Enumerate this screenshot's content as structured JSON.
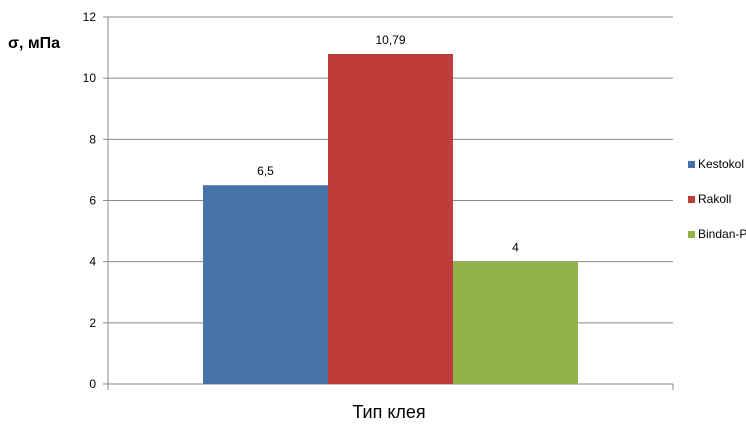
{
  "chart_data": {
    "type": "bar",
    "ylabel": "σ, мПа",
    "xlabel": "Тип клея",
    "ylim": [
      0,
      12
    ],
    "yticks": [
      0,
      2,
      4,
      6,
      8,
      10,
      12
    ],
    "grid": true,
    "legend_position": "right",
    "series": [
      {
        "name": "Kestokol",
        "value": 6.5,
        "label": "6,5",
        "color": "#4572a7"
      },
      {
        "name": "Rakoll",
        "value": 10.79,
        "label": "10,79",
        "color": "#be3d3a"
      },
      {
        "name": "Bindan-P",
        "value": 4,
        "label": "4",
        "color": "#90b246"
      }
    ]
  }
}
